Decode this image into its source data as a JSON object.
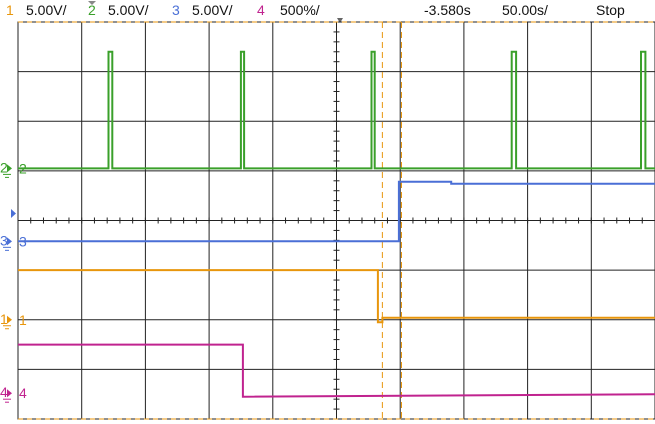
{
  "header": {
    "channels": [
      {
        "num": "1",
        "scale": "5.00V/",
        "color": "#e8960c"
      },
      {
        "num": "2",
        "scale": "5.00V/",
        "color": "#3aa02a"
      },
      {
        "num": "3",
        "scale": "5.00V/",
        "color": "#4a6fd6"
      },
      {
        "num": "4",
        "scale": "500%/",
        "color": "#c0238f"
      }
    ],
    "time_offset": "-3.580s",
    "time_scale": "50.00s/",
    "run_state": "Stop"
  },
  "colors": {
    "grid": "#222222",
    "cursor": "#e8960c",
    "ch1": "#e8960c",
    "ch2": "#3aa02a",
    "ch3": "#4a6fd6",
    "ch4": "#c0238f",
    "trigger_marker": "#4a6fd6"
  },
  "chart_data": {
    "type": "line",
    "title": "",
    "xlabel": "",
    "ylabel": "",
    "grid": true,
    "x_divisions": 10,
    "y_divisions": 8,
    "xlim": [
      0,
      10
    ],
    "ylim": [
      0,
      8
    ],
    "cursors_x": [
      5.72,
      6.02
    ],
    "series": [
      {
        "name": "2",
        "color": "#3aa02a",
        "ground_div": 5.05,
        "x": [
          0,
          1.42,
          1.42,
          1.48,
          1.48,
          3.5,
          3.5,
          3.55,
          3.55,
          5.55,
          5.55,
          5.6,
          5.6,
          7.75,
          7.75,
          7.82,
          7.82,
          9.78,
          9.78,
          9.85,
          9.85,
          10
        ],
        "y": [
          5.05,
          5.05,
          7.4,
          7.4,
          5.05,
          5.05,
          7.4,
          7.4,
          5.05,
          5.05,
          7.4,
          7.4,
          5.05,
          5.05,
          7.4,
          7.4,
          5.05,
          5.05,
          7.4,
          7.4,
          5.05,
          5.05
        ]
      },
      {
        "name": "3",
        "color": "#4a6fd6",
        "ground_div": 3.58,
        "x": [
          0,
          5.98,
          5.98,
          6.8,
          6.8,
          10
        ],
        "y": [
          3.58,
          3.58,
          4.78,
          4.78,
          4.74,
          4.74
        ]
      },
      {
        "name": "1",
        "color": "#e8960c",
        "ground_div": 2.0,
        "x": [
          0,
          5.65,
          5.65,
          5.72,
          5.72,
          10
        ],
        "y": [
          3.0,
          3.0,
          1.95,
          1.95,
          2.04,
          2.04
        ]
      },
      {
        "name": "4",
        "color": "#c0238f",
        "ground_div": 0.52,
        "x": [
          0,
          3.53,
          3.53,
          10
        ],
        "y": [
          1.5,
          1.5,
          0.45,
          0.5
        ]
      }
    ]
  }
}
